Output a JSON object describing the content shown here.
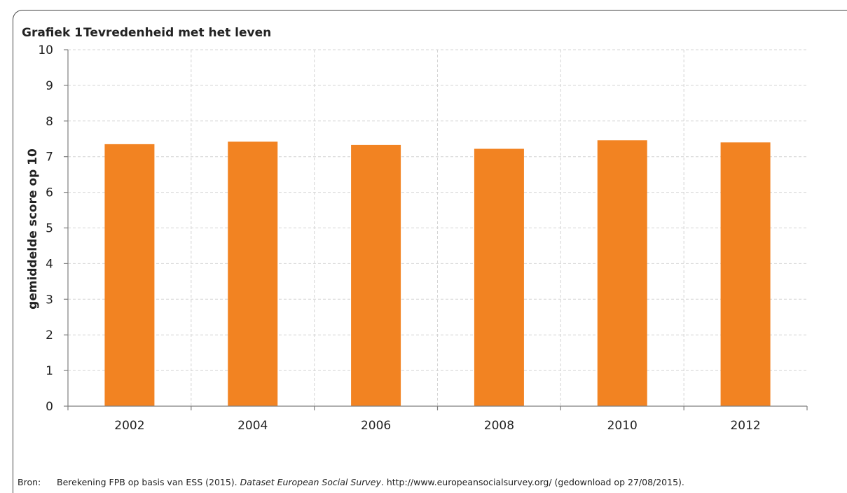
{
  "header": {
    "figure_number": "Grafiek 1",
    "title": "Tevredenheid met het leven"
  },
  "source": {
    "label": "Bron:",
    "text_before": "Berekening FPB op basis van ESS (2015). ",
    "text_italic": "Dataset European Social Survey",
    "text_after": ". http://www.europeansocialsurvey.org/ (gedownload op 27/08/2015)."
  },
  "colors": {
    "bar": "#f28322",
    "grid": "#d4d4d4",
    "axis": "#7f7f7f"
  },
  "chart_data": {
    "type": "bar",
    "title": "Tevredenheid met het leven",
    "xlabel": "",
    "ylabel": "gemiddelde score op 10",
    "categories": [
      "2002",
      "2004",
      "2006",
      "2008",
      "2010",
      "2012"
    ],
    "values": [
      7.35,
      7.42,
      7.33,
      7.22,
      7.46,
      7.4
    ],
    "ylim": [
      0,
      10
    ],
    "yticks": [
      0,
      1,
      2,
      3,
      4,
      5,
      6,
      7,
      8,
      9,
      10
    ],
    "grid": true,
    "legend": "none"
  }
}
